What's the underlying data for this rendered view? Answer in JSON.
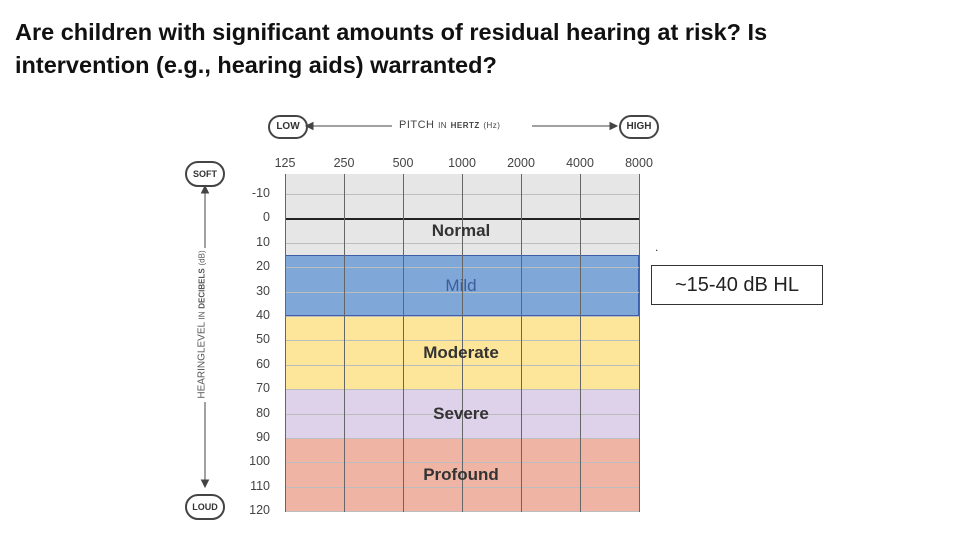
{
  "title": {
    "line1": "Are children with significant amounts of residual hearing at risk?  Is",
    "line2": "intervention (e.g., hearing aids) warranted?"
  },
  "audiogram": {
    "pitch_axis": {
      "low_label": "LOW",
      "high_label": "HIGH",
      "title_pitch": "PITCH",
      "title_in": "IN",
      "title_hertz": "HERTZ",
      "title_unit": "(Hz)",
      "frequencies": [
        "125",
        "250",
        "500",
        "1000",
        "2000",
        "4000",
        "8000"
      ]
    },
    "level_axis": {
      "soft_label": "SOFT",
      "loud_label": "LOUD",
      "title_main": "HEARINGLEVEL",
      "title_in": "IN",
      "title_decibels": "DECIBELS",
      "title_unit": "(dB)",
      "levels": [
        "-10",
        "0",
        "10",
        "20",
        "30",
        "40",
        "50",
        "60",
        "70",
        "80",
        "90",
        "100",
        "110",
        "120"
      ]
    },
    "bands": [
      {
        "label": "Normal",
        "range_db": [
          -10,
          15
        ],
        "color": "#e6e6e6"
      },
      {
        "label": "Mild",
        "range_db": [
          15,
          40
        ],
        "color": "#7fa8d8"
      },
      {
        "label": "Moderate",
        "range_db": [
          40,
          70
        ],
        "color": "#fde69a"
      },
      {
        "label": "Severe",
        "range_db": [
          70,
          90
        ],
        "color": "#ded2ea"
      },
      {
        "label": "Profound",
        "range_db": [
          90,
          120
        ],
        "color": "#f0b4a4"
      }
    ]
  },
  "annotation": {
    "dot": ".",
    "callout": "~15-40 dB HL"
  }
}
